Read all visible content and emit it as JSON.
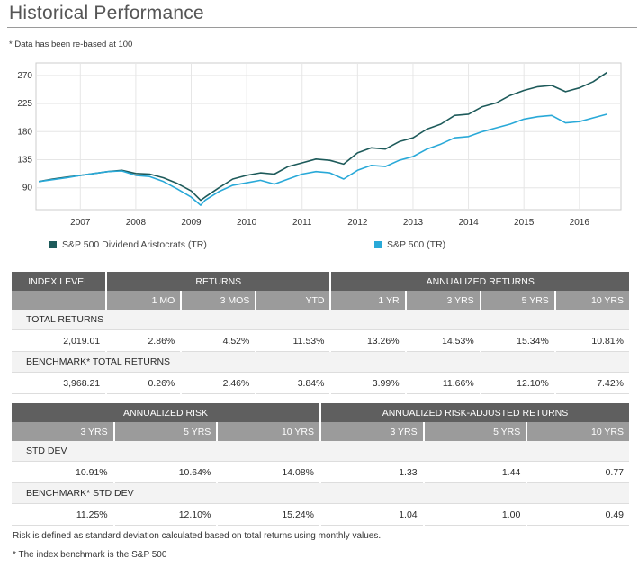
{
  "page": {
    "title": "Historical Performance",
    "note": "* Data has been re-based at 100",
    "risk_note": "Risk is defined as standard deviation calculated based on total returns using monthly values.",
    "benchmark_note": "* The index benchmark is the  S&P 500"
  },
  "colors": {
    "aristocrats": "#1d5a5a",
    "sp500": "#29a9d8"
  },
  "chart_data": {
    "type": "line",
    "title": "",
    "xlabel": "",
    "ylabel": "",
    "x_ticks": [
      "2007",
      "2008",
      "2009",
      "2010",
      "2011",
      "2012",
      "2013",
      "2014",
      "2015",
      "2016"
    ],
    "y_ticks": [
      90,
      135,
      180,
      225,
      270
    ],
    "xlim": [
      2006.2,
      2016.75
    ],
    "ylim": [
      55,
      290
    ],
    "legend_position": "bottom",
    "series": [
      {
        "name": "S&P 500 Dividend Aristocrats (TR)",
        "color": "#1d5a5a",
        "x": [
          2006.25,
          2006.5,
          2006.75,
          2007.0,
          2007.25,
          2007.5,
          2007.75,
          2008.0,
          2008.25,
          2008.5,
          2008.75,
          2009.0,
          2009.17,
          2009.25,
          2009.5,
          2009.75,
          2010.0,
          2010.25,
          2010.5,
          2010.75,
          2011.0,
          2011.25,
          2011.5,
          2011.75,
          2012.0,
          2012.25,
          2012.5,
          2012.75,
          2013.0,
          2013.25,
          2013.5,
          2013.75,
          2014.0,
          2014.25,
          2014.5,
          2014.75,
          2015.0,
          2015.25,
          2015.5,
          2015.75,
          2016.0,
          2016.25,
          2016.5
        ],
        "y": [
          100,
          104,
          107,
          110,
          113,
          116,
          118,
          113,
          112,
          106,
          97,
          85,
          70,
          75,
          90,
          104,
          110,
          114,
          112,
          124,
          130,
          136,
          134,
          128,
          146,
          154,
          152,
          164,
          170,
          184,
          192,
          206,
          208,
          220,
          226,
          238,
          246,
          252,
          254,
          244,
          250,
          260,
          275
        ]
      },
      {
        "name": "S&P 500 (TR)",
        "color": "#29a9d8",
        "x": [
          2006.25,
          2006.5,
          2006.75,
          2007.0,
          2007.25,
          2007.5,
          2007.75,
          2008.0,
          2008.25,
          2008.5,
          2008.75,
          2009.0,
          2009.17,
          2009.25,
          2009.5,
          2009.75,
          2010.0,
          2010.25,
          2010.5,
          2010.75,
          2011.0,
          2011.25,
          2011.5,
          2011.75,
          2012.0,
          2012.25,
          2012.5,
          2012.75,
          2013.0,
          2013.25,
          2013.5,
          2013.75,
          2014.0,
          2014.25,
          2014.5,
          2014.75,
          2015.0,
          2015.25,
          2015.5,
          2015.75,
          2016.0,
          2016.25,
          2016.5
        ],
        "y": [
          100,
          103,
          106,
          110,
          113,
          116,
          117,
          110,
          108,
          100,
          88,
          75,
          62,
          70,
          84,
          94,
          98,
          102,
          96,
          104,
          112,
          116,
          114,
          104,
          118,
          126,
          124,
          134,
          140,
          152,
          160,
          170,
          172,
          180,
          186,
          192,
          200,
          204,
          206,
          194,
          196,
          202,
          208
        ]
      }
    ]
  },
  "returns_table": {
    "header": {
      "index_level": "INDEX LEVEL",
      "returns": "RETURNS",
      "annualized": "ANNUALIZED RETURNS"
    },
    "columns": [
      "1 MO",
      "3 MOS",
      "YTD",
      "1 YR",
      "3 YRS",
      "5 YRS",
      "10 YRS"
    ],
    "rows": [
      {
        "label": "TOTAL RETURNS",
        "index_level": "2,019.01",
        "values": [
          "2.86%",
          "4.52%",
          "11.53%",
          "13.26%",
          "14.53%",
          "15.34%",
          "10.81%"
        ]
      },
      {
        "label": "BENCHMARK* TOTAL RETURNS",
        "index_level": "3,968.21",
        "values": [
          "0.26%",
          "2.46%",
          "3.84%",
          "3.99%",
          "11.66%",
          "12.10%",
          "7.42%"
        ]
      }
    ]
  },
  "risk_table": {
    "header": {
      "risk": "ANNUALIZED RISK",
      "adjusted": "ANNUALIZED RISK-ADJUSTED RETURNS"
    },
    "columns": [
      "3 YRS",
      "5 YRS",
      "10 YRS",
      "3 YRS",
      "5 YRS",
      "10 YRS"
    ],
    "rows": [
      {
        "label": "STD DEV",
        "values": [
          "10.91%",
          "10.64%",
          "14.08%",
          "1.33",
          "1.44",
          "0.77"
        ]
      },
      {
        "label": "BENCHMARK* STD DEV",
        "values": [
          "11.25%",
          "12.10%",
          "15.24%",
          "1.04",
          "1.00",
          "0.49"
        ]
      }
    ]
  }
}
